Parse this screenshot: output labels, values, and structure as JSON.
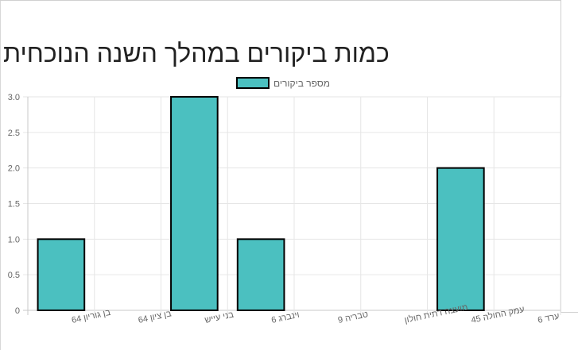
{
  "page": {
    "title": "כמות ביקורים במהלך השנה הנוכחית"
  },
  "chart_data": {
    "type": "bar",
    "title": "כמות ביקורים במהלך השנה הנוכחית",
    "categories": [
      "בן גוריון 64",
      "בן ציון 64",
      "בני עייש",
      "וינברג 6",
      "טבריה 9",
      "מועצה דתית חולון",
      "עמק החולה 45",
      "ערד 6"
    ],
    "series": [
      {
        "name": "מספר ביקורים",
        "values": [
          1,
          0,
          3,
          1,
          0,
          0,
          2,
          0
        ]
      }
    ],
    "ylim": [
      0,
      3
    ],
    "yticks": [
      "0",
      "0.5",
      "1.0",
      "1.5",
      "2.0",
      "2.5",
      "3.0"
    ],
    "grid": true,
    "legend": "top",
    "colors": {
      "bar_fill": "#4bc0c0",
      "bar_border": "#000000",
      "grid": "#e6e6e6",
      "axis_text": "#666666"
    }
  }
}
